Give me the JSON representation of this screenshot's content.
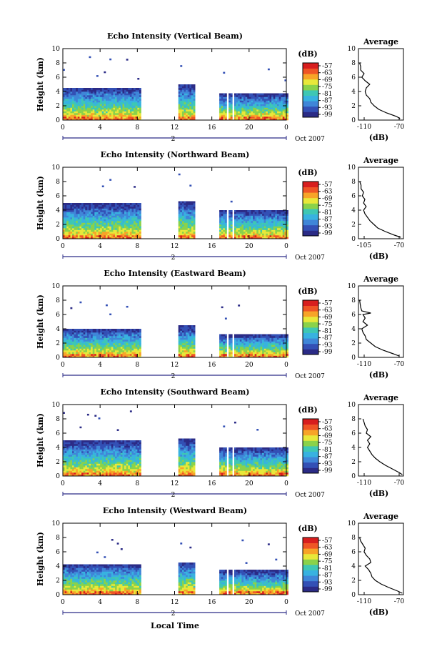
{
  "figure": {
    "xlabel": "Local Time",
    "height_label": "Height (km)",
    "unit_label": "(dB)",
    "avg_title": "Average",
    "avg_xlabel": "(dB)",
    "date_label": "Oct 2007",
    "day_label": "2"
  },
  "colors": {
    "colormap": [
      "#2b2b86",
      "#3350b5",
      "#3f86d8",
      "#38b2e0",
      "#3ec7b4",
      "#8ad24a",
      "#e8e83a",
      "#f7a428",
      "#ef5526",
      "#d81e1e"
    ],
    "axis": "#000000"
  },
  "chart_data": [
    {
      "type": "heatmap",
      "title": "Echo Intensity (Vertical Beam)",
      "ylabel": "Height (km)",
      "xlim": [
        0,
        24
      ],
      "ylim": [
        0,
        10
      ],
      "x_ticks": [
        "0",
        "4",
        "8",
        "12",
        "16",
        "20",
        "0"
      ],
      "y_ticks": [
        "0",
        "2",
        "4",
        "6",
        "8",
        "10"
      ],
      "data_gaps_hours": [
        [
          8.4,
          12.4
        ],
        [
          14.2,
          16.8
        ],
        [
          17.6,
          17.8
        ],
        [
          18.1,
          18.3
        ]
      ],
      "echo_top_km": 4.5,
      "colorbar": {
        "label": "(dB)",
        "ticks": [
          "-57",
          "-63",
          "-69",
          "-75",
          "-81",
          "-87",
          "-93",
          "-99"
        ]
      },
      "average_profile": {
        "title": "Average",
        "xlabel": "(dB)",
        "x_ticks": [
          "-110",
          "-70"
        ],
        "xlim": [
          -110,
          -70
        ],
        "y_ticks": [
          "0",
          "2",
          "4",
          "6",
          "8",
          "10"
        ],
        "height_km": [
          0.2,
          0.5,
          1.0,
          1.5,
          2.0,
          2.5,
          3.0,
          3.5,
          4.0,
          4.5,
          5.0,
          5.5,
          6.0,
          6.5,
          7.0,
          7.5,
          8.0
        ],
        "db": [
          -73,
          -76,
          -85,
          -92,
          -96,
          -99,
          -100,
          -103,
          -104,
          -103,
          -100,
          -104,
          -107,
          -105,
          -108,
          -108,
          -109
        ]
      }
    },
    {
      "type": "heatmap",
      "title": "Echo Intensity (Northward Beam)",
      "ylabel": "Height (km)",
      "xlim": [
        0,
        24
      ],
      "ylim": [
        0,
        10
      ],
      "x_ticks": [
        "0",
        "4",
        "8",
        "12",
        "16",
        "20",
        "0"
      ],
      "y_ticks": [
        "0",
        "2",
        "4",
        "6",
        "8",
        "10"
      ],
      "data_gaps_hours": [
        [
          8.4,
          12.4
        ],
        [
          14.2,
          16.8
        ],
        [
          17.6,
          17.8
        ],
        [
          18.1,
          18.3
        ]
      ],
      "echo_top_km": 4.8,
      "colorbar": {
        "label": "(dB)",
        "ticks": [
          "-57",
          "-63",
          "-69",
          "-75",
          "-81",
          "-87",
          "-93",
          "-99"
        ]
      },
      "average_profile": {
        "title": "Average",
        "xlabel": "(dB)",
        "x_ticks": [
          "-105",
          "-70"
        ],
        "xlim": [
          -105,
          -70
        ],
        "y_ticks": [
          "0",
          "2",
          "4",
          "6",
          "8",
          "10"
        ],
        "height_km": [
          0.2,
          0.5,
          1.0,
          1.5,
          2.0,
          2.5,
          3.0,
          3.5,
          4.0,
          4.5,
          5.0,
          5.5,
          6.0,
          6.5,
          7.0,
          7.5,
          8.0
        ],
        "db": [
          -72,
          -77,
          -84,
          -90,
          -93,
          -96,
          -98,
          -100,
          -101,
          -99,
          -101,
          -100,
          -102,
          -101,
          -103,
          -103,
          -104
        ]
      }
    },
    {
      "type": "heatmap",
      "title": "Echo Intensity (Eastward Beam)",
      "ylabel": "Height (km)",
      "xlim": [
        0,
        24
      ],
      "ylim": [
        0,
        10
      ],
      "x_ticks": [
        "0",
        "4",
        "8",
        "12",
        "16",
        "20",
        "0"
      ],
      "y_ticks": [
        "0",
        "2",
        "4",
        "6",
        "8",
        "10"
      ],
      "data_gaps_hours": [
        [
          8.4,
          12.4
        ],
        [
          14.2,
          16.8
        ],
        [
          17.6,
          17.8
        ],
        [
          18.1,
          18.3
        ]
      ],
      "echo_top_km": 4.0,
      "colorbar": {
        "label": "(dB)",
        "ticks": [
          "-57",
          "-63",
          "-69",
          "-75",
          "-81",
          "-87",
          "-93",
          "-99"
        ]
      },
      "average_profile": {
        "title": "Average",
        "xlabel": "(dB)",
        "x_ticks": [
          "-110",
          "-70"
        ],
        "xlim": [
          -110,
          -70
        ],
        "y_ticks": [
          "0",
          "2",
          "4",
          "6",
          "8",
          "10"
        ],
        "height_km": [
          0.2,
          0.5,
          1.0,
          1.5,
          2.0,
          2.5,
          3.0,
          3.5,
          4.0,
          4.5,
          5.0,
          5.5,
          6.0,
          6.2,
          6.5,
          7.0,
          8.0
        ],
        "db": [
          -74,
          -79,
          -88,
          -95,
          -99,
          -103,
          -104,
          -106,
          -107,
          -102,
          -106,
          -104,
          -106,
          -99,
          -107,
          -108,
          -109
        ]
      }
    },
    {
      "type": "heatmap",
      "title": "Echo Intensity (Southward Beam)",
      "ylabel": "Height (km)",
      "xlim": [
        0,
        24
      ],
      "ylim": [
        0,
        10
      ],
      "x_ticks": [
        "0",
        "4",
        "8",
        "12",
        "16",
        "20",
        "0"
      ],
      "y_ticks": [
        "0",
        "2",
        "4",
        "6",
        "8",
        "10"
      ],
      "data_gaps_hours": [
        [
          8.4,
          12.4
        ],
        [
          14.2,
          16.8
        ],
        [
          17.6,
          17.8
        ],
        [
          18.1,
          18.3
        ]
      ],
      "echo_top_km": 4.8,
      "colorbar": {
        "label": "(dB)",
        "ticks": [
          "-57",
          "-63",
          "-69",
          "-75",
          "-81",
          "-87",
          "-93",
          "-99"
        ]
      },
      "average_profile": {
        "title": "Average",
        "xlabel": "(dB)",
        "x_ticks": [
          "-110",
          "-70"
        ],
        "xlim": [
          -110,
          -70
        ],
        "y_ticks": [
          "0",
          "2",
          "4",
          "6",
          "8",
          "10"
        ],
        "height_km": [
          0.2,
          0.5,
          1.0,
          1.5,
          2.0,
          2.5,
          3.0,
          3.5,
          4.0,
          4.5,
          5.0,
          5.5,
          6.0,
          6.5,
          7.0,
          7.5,
          8.0
        ],
        "db": [
          -71,
          -74,
          -80,
          -86,
          -91,
          -95,
          -98,
          -100,
          -102,
          -100,
          -102,
          -99,
          -103,
          -102,
          -104,
          -105,
          -106
        ]
      }
    },
    {
      "type": "heatmap",
      "title": "Echo Intensity (Westward Beam)",
      "ylabel": "Height (km)",
      "xlim": [
        0,
        24
      ],
      "ylim": [
        0,
        10
      ],
      "x_ticks": [
        "0",
        "4",
        "8",
        "12",
        "16",
        "20",
        "0"
      ],
      "y_ticks": [
        "0",
        "2",
        "4",
        "6",
        "8",
        "10"
      ],
      "data_gaps_hours": [
        [
          8.4,
          12.4
        ],
        [
          14.2,
          16.8
        ],
        [
          17.6,
          17.8
        ],
        [
          18.1,
          18.3
        ]
      ],
      "echo_top_km": 4.2,
      "colorbar": {
        "label": "(dB)",
        "ticks": [
          "-57",
          "-63",
          "-69",
          "-75",
          "-81",
          "-87",
          "-93",
          "-99"
        ]
      },
      "average_profile": {
        "title": "Average",
        "xlabel": "(dB)",
        "x_ticks": [
          "-110",
          "-70"
        ],
        "xlim": [
          -110,
          -70
        ],
        "y_ticks": [
          "0",
          "2",
          "4",
          "6",
          "8",
          "10"
        ],
        "height_km": [
          0.2,
          0.5,
          1.0,
          1.5,
          2.0,
          2.5,
          3.0,
          3.5,
          4.0,
          4.5,
          5.0,
          5.5,
          6.0,
          6.5,
          7.0,
          7.5,
          8.0
        ],
        "db": [
          -71,
          -75,
          -83,
          -90,
          -95,
          -98,
          -99,
          -101,
          -104,
          -99,
          -100,
          -103,
          -105,
          -104,
          -106,
          -108,
          -109
        ]
      }
    }
  ]
}
